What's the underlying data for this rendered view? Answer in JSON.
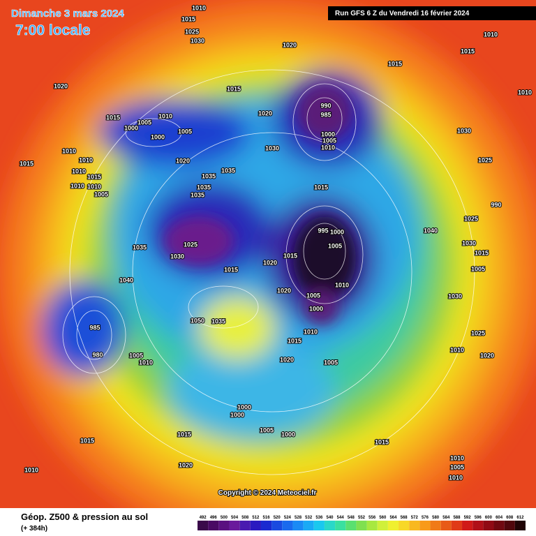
{
  "header": {
    "date": "Dimanche 3 mars 2024",
    "time": "7:00 locale",
    "run": "Run GFS 6 Z du Vendredi 16 février 2024"
  },
  "footer": {
    "copyright": "Copyright © 2024 Meteociel.fr",
    "title": "Géop. Z500 & pression au sol",
    "lead": "(+ 384h)"
  },
  "pressure_labels": [
    "1010",
    "1015",
    "1025",
    "1030",
    "1020",
    "1010",
    "1015",
    "1015",
    "1020",
    "1015",
    "1010",
    "990",
    "985",
    "1020",
    "1015",
    "1010",
    "1005",
    "1000",
    "1005",
    "1000",
    "1000",
    "1005",
    "1010",
    "1030",
    "1030",
    "1010",
    "1010",
    "1015",
    "1020",
    "1025",
    "1035",
    "1010",
    "1015",
    "1035",
    "1010",
    "1010",
    "1015",
    "1035",
    "1005",
    "1035",
    "990",
    "1025",
    "995",
    "1000",
    "1040",
    "1030",
    "1025",
    "1005",
    "1035",
    "1015",
    "1030",
    "1020",
    "1015",
    "1015",
    "1040",
    "1005",
    "1010",
    "1020",
    "1030",
    "1005",
    "1000",
    "1035",
    "1050",
    "985",
    "1025",
    "1010",
    "1015",
    "1010",
    "980",
    "1005",
    "1010",
    "1020",
    "1020",
    "1005",
    "1000",
    "1000",
    "1005",
    "1000",
    "1015",
    "1015",
    "1015",
    "1010",
    "1005",
    "1020",
    "1010",
    "1010"
  ],
  "scale": {
    "labels": [
      492,
      496,
      500,
      504,
      508,
      512,
      516,
      520,
      524,
      528,
      532,
      536,
      540,
      544,
      548,
      552,
      556,
      560,
      564,
      568,
      572,
      576,
      580,
      584,
      588,
      592,
      596,
      600,
      604,
      608,
      612
    ],
    "colors": [
      "#3a0a4a",
      "#4a0a64",
      "#5a1080",
      "#6a1a9c",
      "#4a1ab0",
      "#2a1ac0",
      "#1a2ad0",
      "#1a4ae0",
      "#1a6aee",
      "#1a8af5",
      "#1aaaf5",
      "#1ac8ee",
      "#2ad8c8",
      "#3ae0a0",
      "#5ae070",
      "#80e050",
      "#a8e840",
      "#d0f03a",
      "#f0f030",
      "#f8d828",
      "#f8b820",
      "#f89a1a",
      "#f07a18",
      "#e85a18",
      "#e03a18",
      "#d01a18",
      "#b01018",
      "#900a14",
      "#700810",
      "#50060c",
      "#200406"
    ]
  }
}
